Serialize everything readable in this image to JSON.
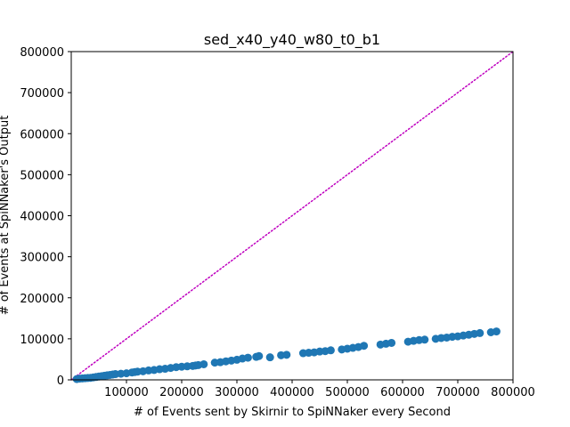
{
  "chart_data": {
    "type": "scatter",
    "title": "sed_x40_y40_w80_t0_b1",
    "xlabel": "# of Events sent by Skirnir to SpiNNaker every Second",
    "ylabel": "# of Events at SpiNNaker's Output",
    "xlim": [
      0,
      800000
    ],
    "ylim": [
      0,
      800000
    ],
    "x_ticks": [
      "100000",
      "200000",
      "300000",
      "400000",
      "500000",
      "600000",
      "700000",
      "800000"
    ],
    "y_ticks": [
      "0",
      "100000",
      "200000",
      "300000",
      "400000",
      "500000",
      "600000",
      "700000",
      "800000"
    ],
    "grid": false,
    "point_color": "#1f77b4",
    "reference_line": {
      "style": "dotted",
      "color": "#bf00bf",
      "from": [
        0,
        0
      ],
      "to": [
        800000,
        800000
      ]
    },
    "series": [
      {
        "x": [
          10000,
          15000,
          20000,
          25000,
          30000,
          35000,
          40000,
          45000,
          50000,
          55000,
          60000,
          65000,
          70000,
          75000,
          80000,
          90000,
          100000,
          110000,
          115000,
          120000,
          130000,
          140000,
          150000,
          160000,
          170000,
          180000,
          190000,
          200000,
          210000,
          220000,
          225000,
          230000,
          240000,
          260000,
          270000,
          280000,
          290000,
          300000,
          310000,
          320000,
          335000,
          340000,
          360000,
          380000,
          390000,
          420000,
          430000,
          440000,
          450000,
          460000,
          470000,
          490000,
          500000,
          510000,
          520000,
          530000,
          560000,
          570000,
          580000,
          610000,
          620000,
          630000,
          640000,
          660000,
          670000,
          680000,
          690000,
          700000,
          710000,
          720000,
          730000,
          740000,
          760000,
          770000
        ],
        "y": [
          2000,
          3000,
          3500,
          4000,
          4500,
          5000,
          6000,
          7000,
          8000,
          9000,
          10000,
          11000,
          12000,
          13000,
          14000,
          15000,
          16000,
          18000,
          19000,
          20000,
          21000,
          23000,
          24000,
          26000,
          27000,
          29000,
          31000,
          32000,
          33000,
          34000,
          35000,
          36000,
          38000,
          42000,
          43000,
          45000,
          47000,
          49000,
          52000,
          54000,
          56000,
          58000,
          55000,
          60000,
          61000,
          65000,
          66000,
          67000,
          69000,
          70000,
          72000,
          74000,
          76000,
          78000,
          80000,
          83000,
          86000,
          88000,
          90000,
          93000,
          95000,
          97000,
          98000,
          100000,
          102000,
          103000,
          105000,
          106000,
          108000,
          110000,
          112000,
          114000,
          116000,
          118000
        ]
      }
    ]
  }
}
